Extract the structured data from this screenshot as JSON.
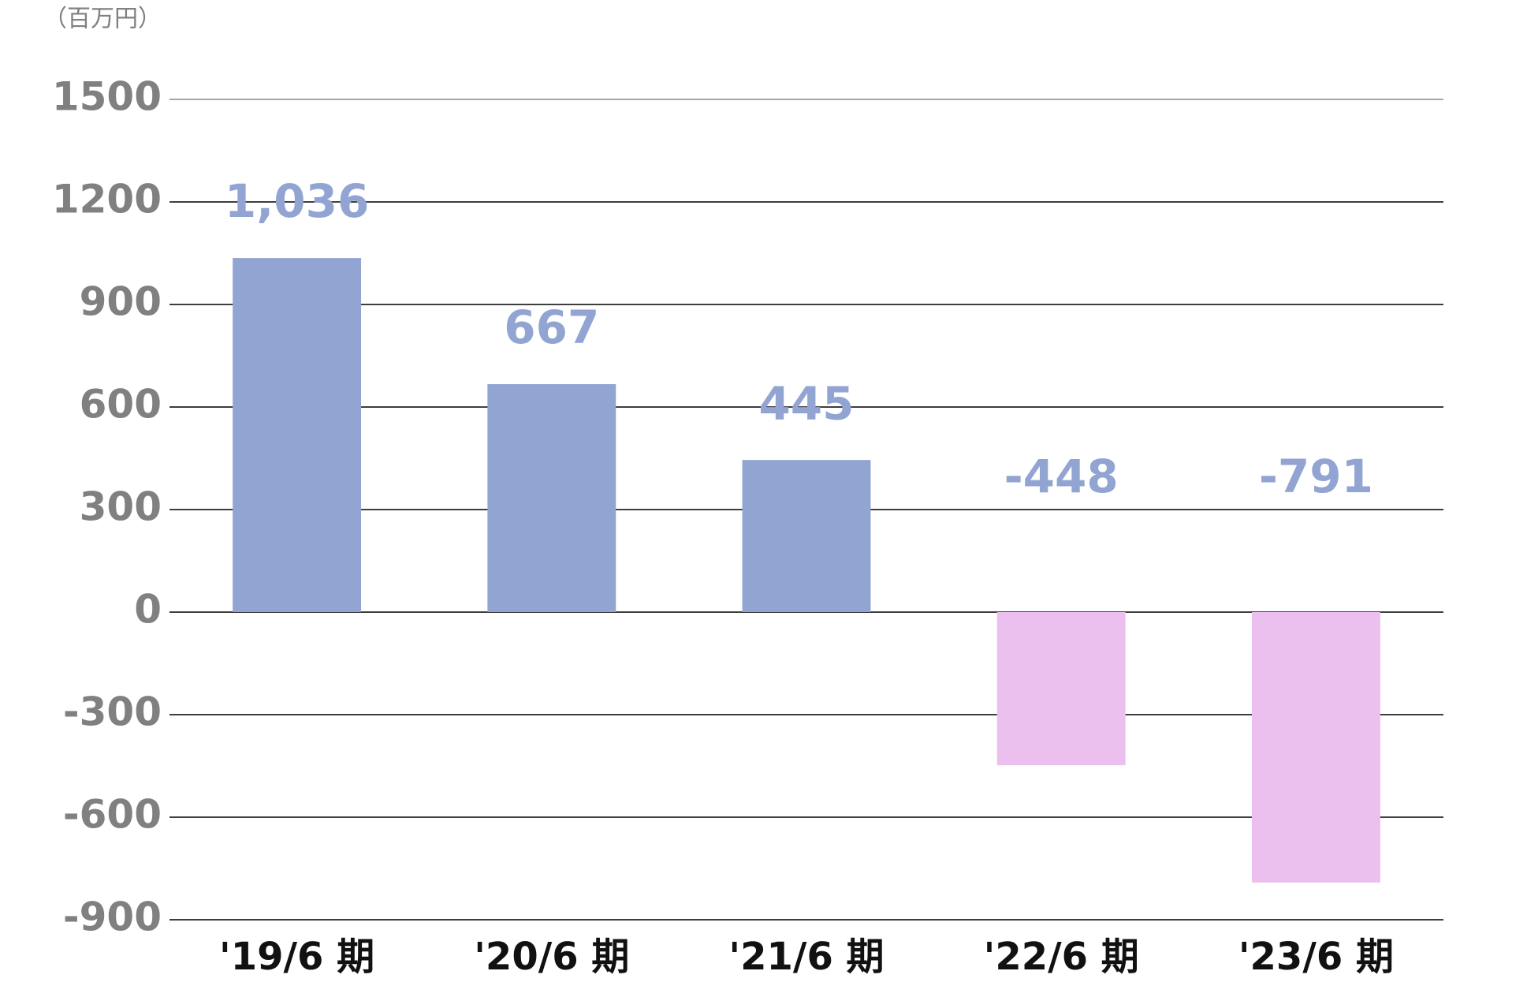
{
  "chart_data": {
    "type": "bar",
    "y_axis_label": "（百万円）",
    "categories": [
      "'19/6 期",
      "'20/6 期",
      "'21/6 期",
      "'22/6 期",
      "'23/6 期"
    ],
    "values": [
      1036,
      667,
      445,
      -448,
      -791
    ],
    "value_labels": [
      "1,036",
      "667",
      "445",
      "-448",
      "-791"
    ],
    "colors": [
      "#92a5d2",
      "#92a5d2",
      "#92a5d2",
      "#ebc0ee",
      "#ebc0ee"
    ],
    "ylim": [
      -900,
      1500
    ],
    "yticks": [
      -900,
      -600,
      -300,
      0,
      300,
      600,
      900,
      1200,
      1500
    ],
    "grid": true
  }
}
